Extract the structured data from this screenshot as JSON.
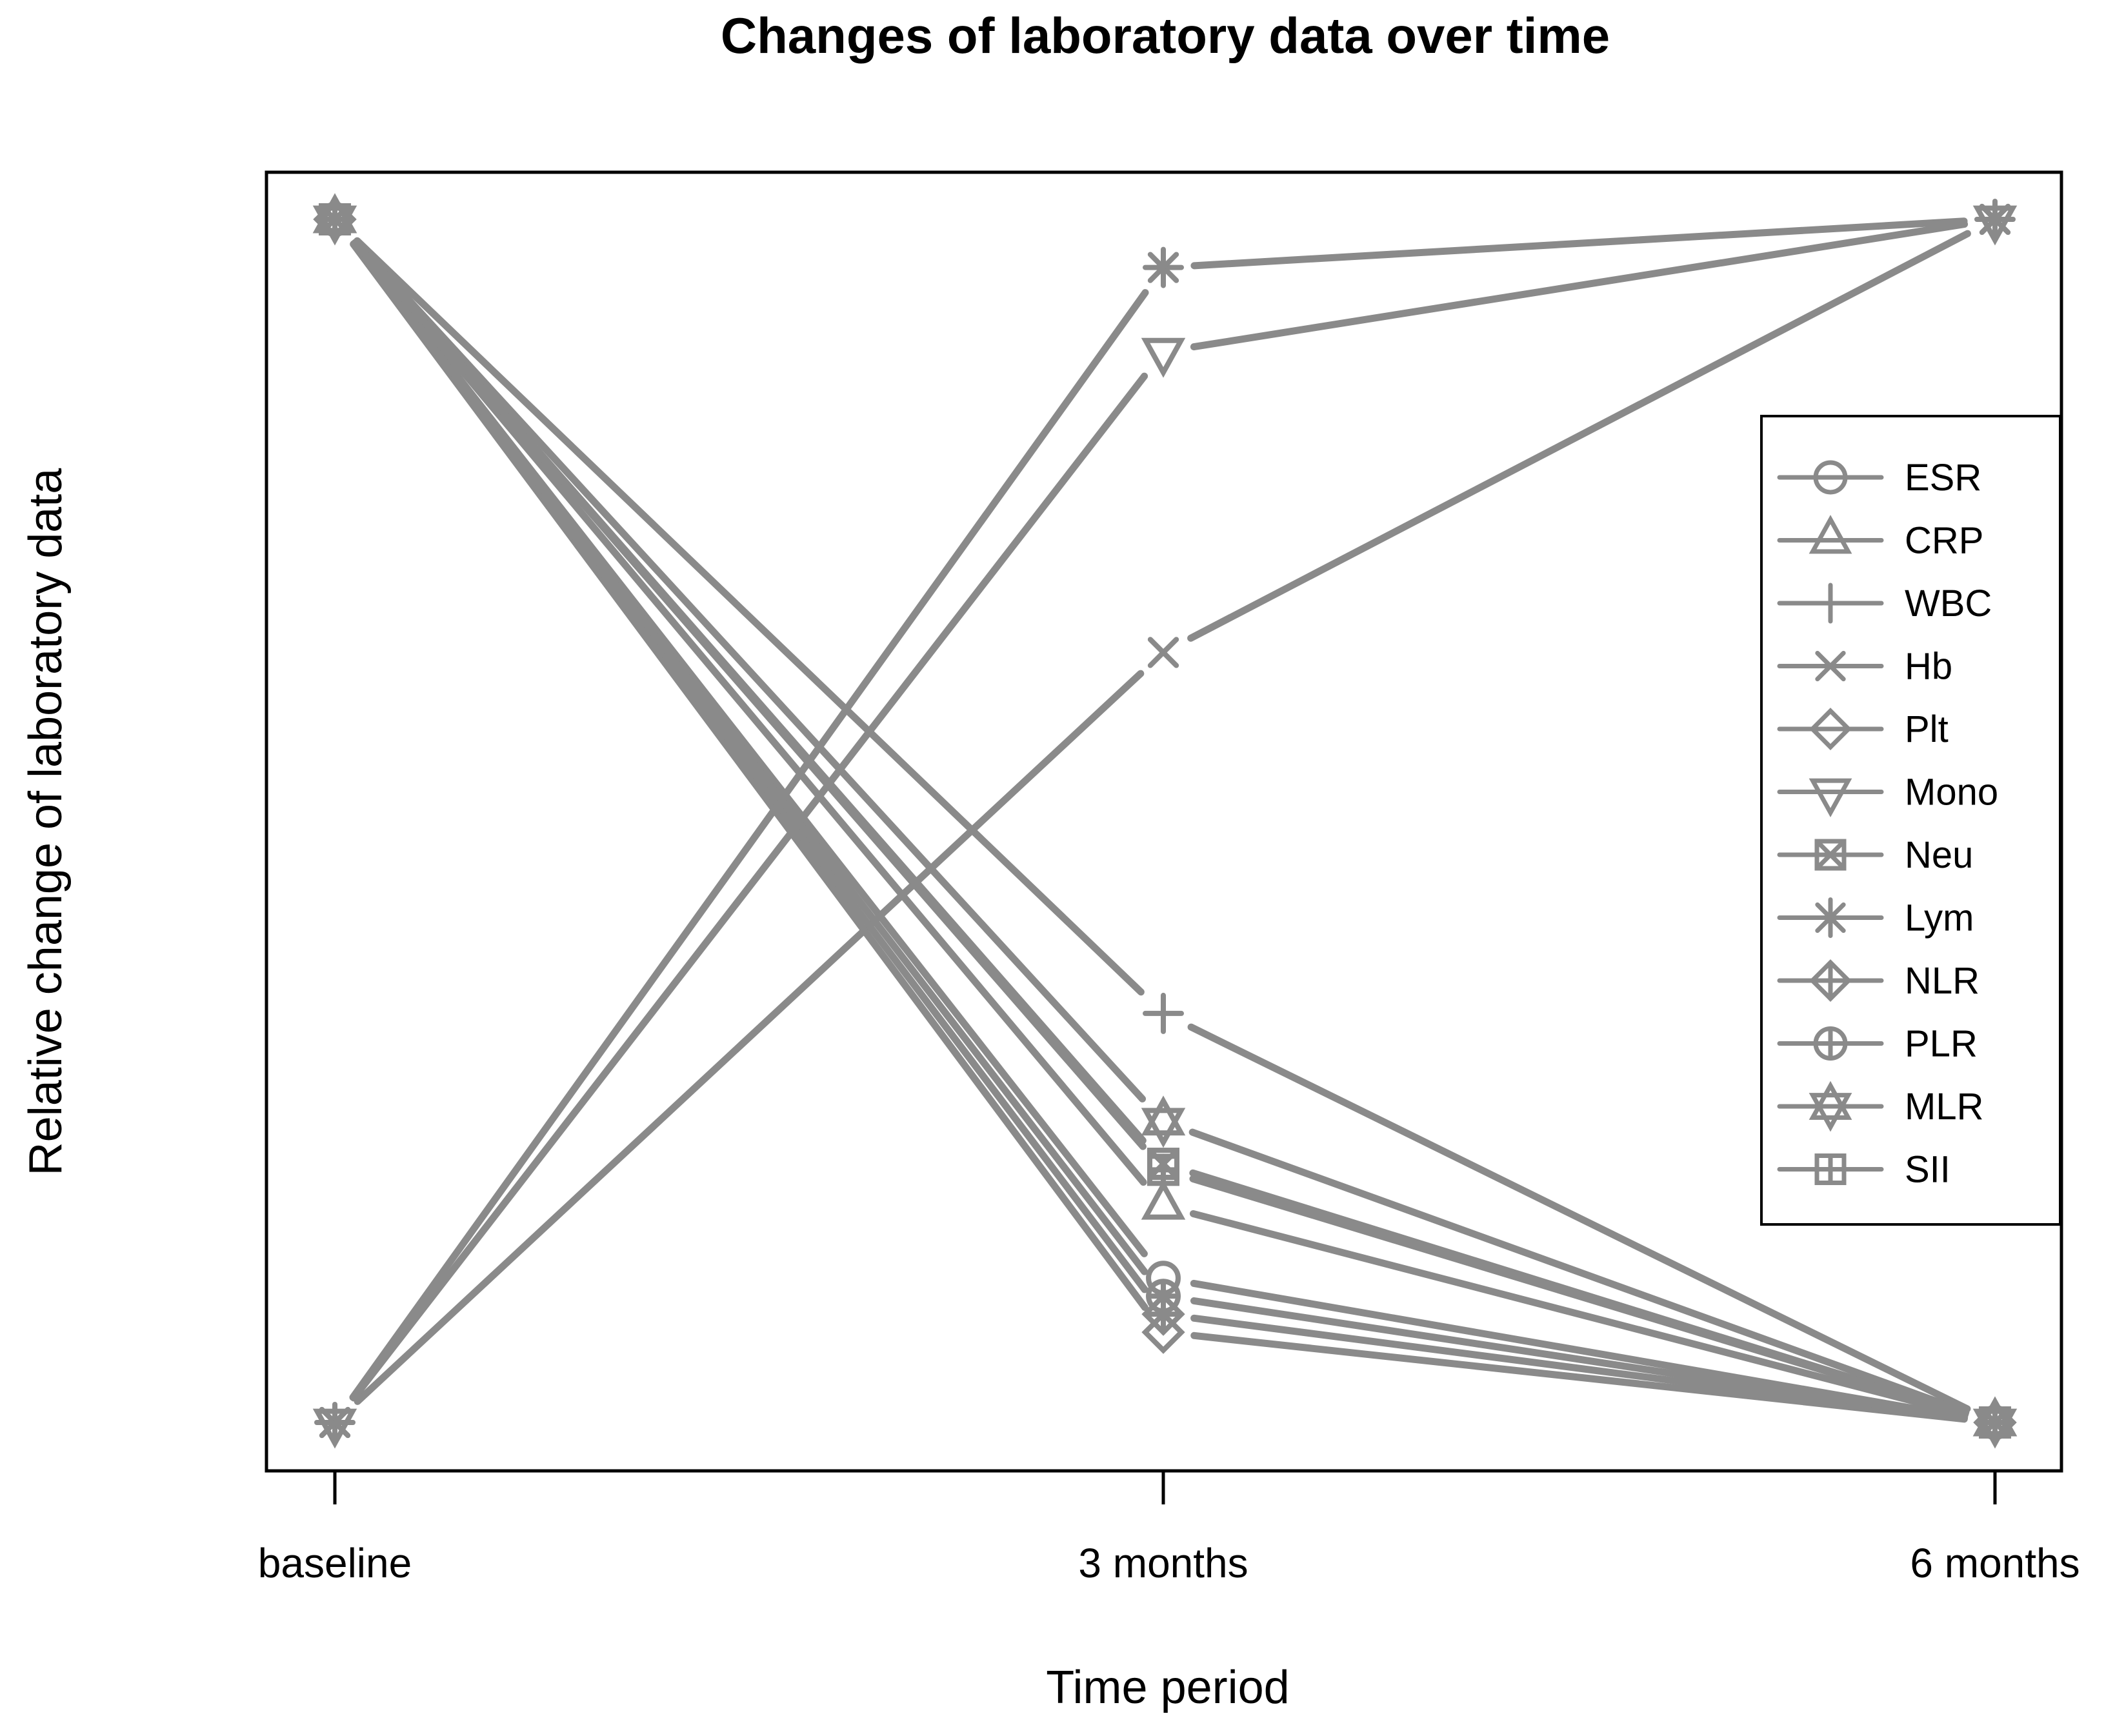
{
  "title": "Changes of laboratory data over time",
  "x_axis": {
    "label": "Time period",
    "tick_labels": [
      "baseline",
      "3 months",
      "6 months"
    ]
  },
  "y_axis": {
    "label": "Relative change of laboratory data"
  },
  "legend": {
    "position": "right",
    "entries": [
      "ESR",
      "CRP",
      "WBC",
      "Hb",
      "Plt",
      "Mono",
      "Neu",
      "Lym",
      "NLR",
      "PLR",
      "MLR",
      "SII"
    ]
  },
  "colors": {
    "series_line": "#8a8a8a",
    "text": "#000000",
    "frame": "#000000",
    "background": "#ffffff"
  },
  "chart_data": {
    "type": "line",
    "categories": [
      "baseline",
      "3 months",
      "6 months"
    ],
    "title": "Changes of laboratory data over time",
    "xlabel": "Time period",
    "ylabel": "Relative change of laboratory data",
    "ylim": [
      0,
      1
    ],
    "grid": false,
    "legend_position": "right",
    "line_style": "both-points-and-lines",
    "series": [
      {
        "name": "ESR",
        "marker": "circle",
        "values": [
          1.0,
          0.12,
          0.0
        ]
      },
      {
        "name": "CRP",
        "marker": "triangle-up",
        "values": [
          1.0,
          0.18,
          0.0
        ]
      },
      {
        "name": "WBC",
        "marker": "plus",
        "values": [
          1.0,
          0.34,
          0.0
        ]
      },
      {
        "name": "Hb",
        "marker": "x-cross",
        "values": [
          0.0,
          0.64,
          1.0
        ]
      },
      {
        "name": "Plt",
        "marker": "diamond",
        "values": [
          1.0,
          0.075,
          0.0
        ]
      },
      {
        "name": "Mono",
        "marker": "triangle-down",
        "values": [
          0.0,
          0.89,
          1.0
        ]
      },
      {
        "name": "Neu",
        "marker": "square-cross",
        "values": [
          1.0,
          0.215,
          0.0
        ]
      },
      {
        "name": "Lym",
        "marker": "asterisk",
        "values": [
          0.0,
          0.96,
          1.0
        ]
      },
      {
        "name": "NLR",
        "marker": "diamond-plus",
        "values": [
          1.0,
          0.09,
          0.0
        ]
      },
      {
        "name": "PLR",
        "marker": "circle-plus",
        "values": [
          1.0,
          0.105,
          0.0
        ]
      },
      {
        "name": "MLR",
        "marker": "star-of-david",
        "values": [
          1.0,
          0.25,
          0.0
        ]
      },
      {
        "name": "SII",
        "marker": "square-plus",
        "values": [
          1.0,
          0.21,
          0.0
        ]
      }
    ]
  }
}
